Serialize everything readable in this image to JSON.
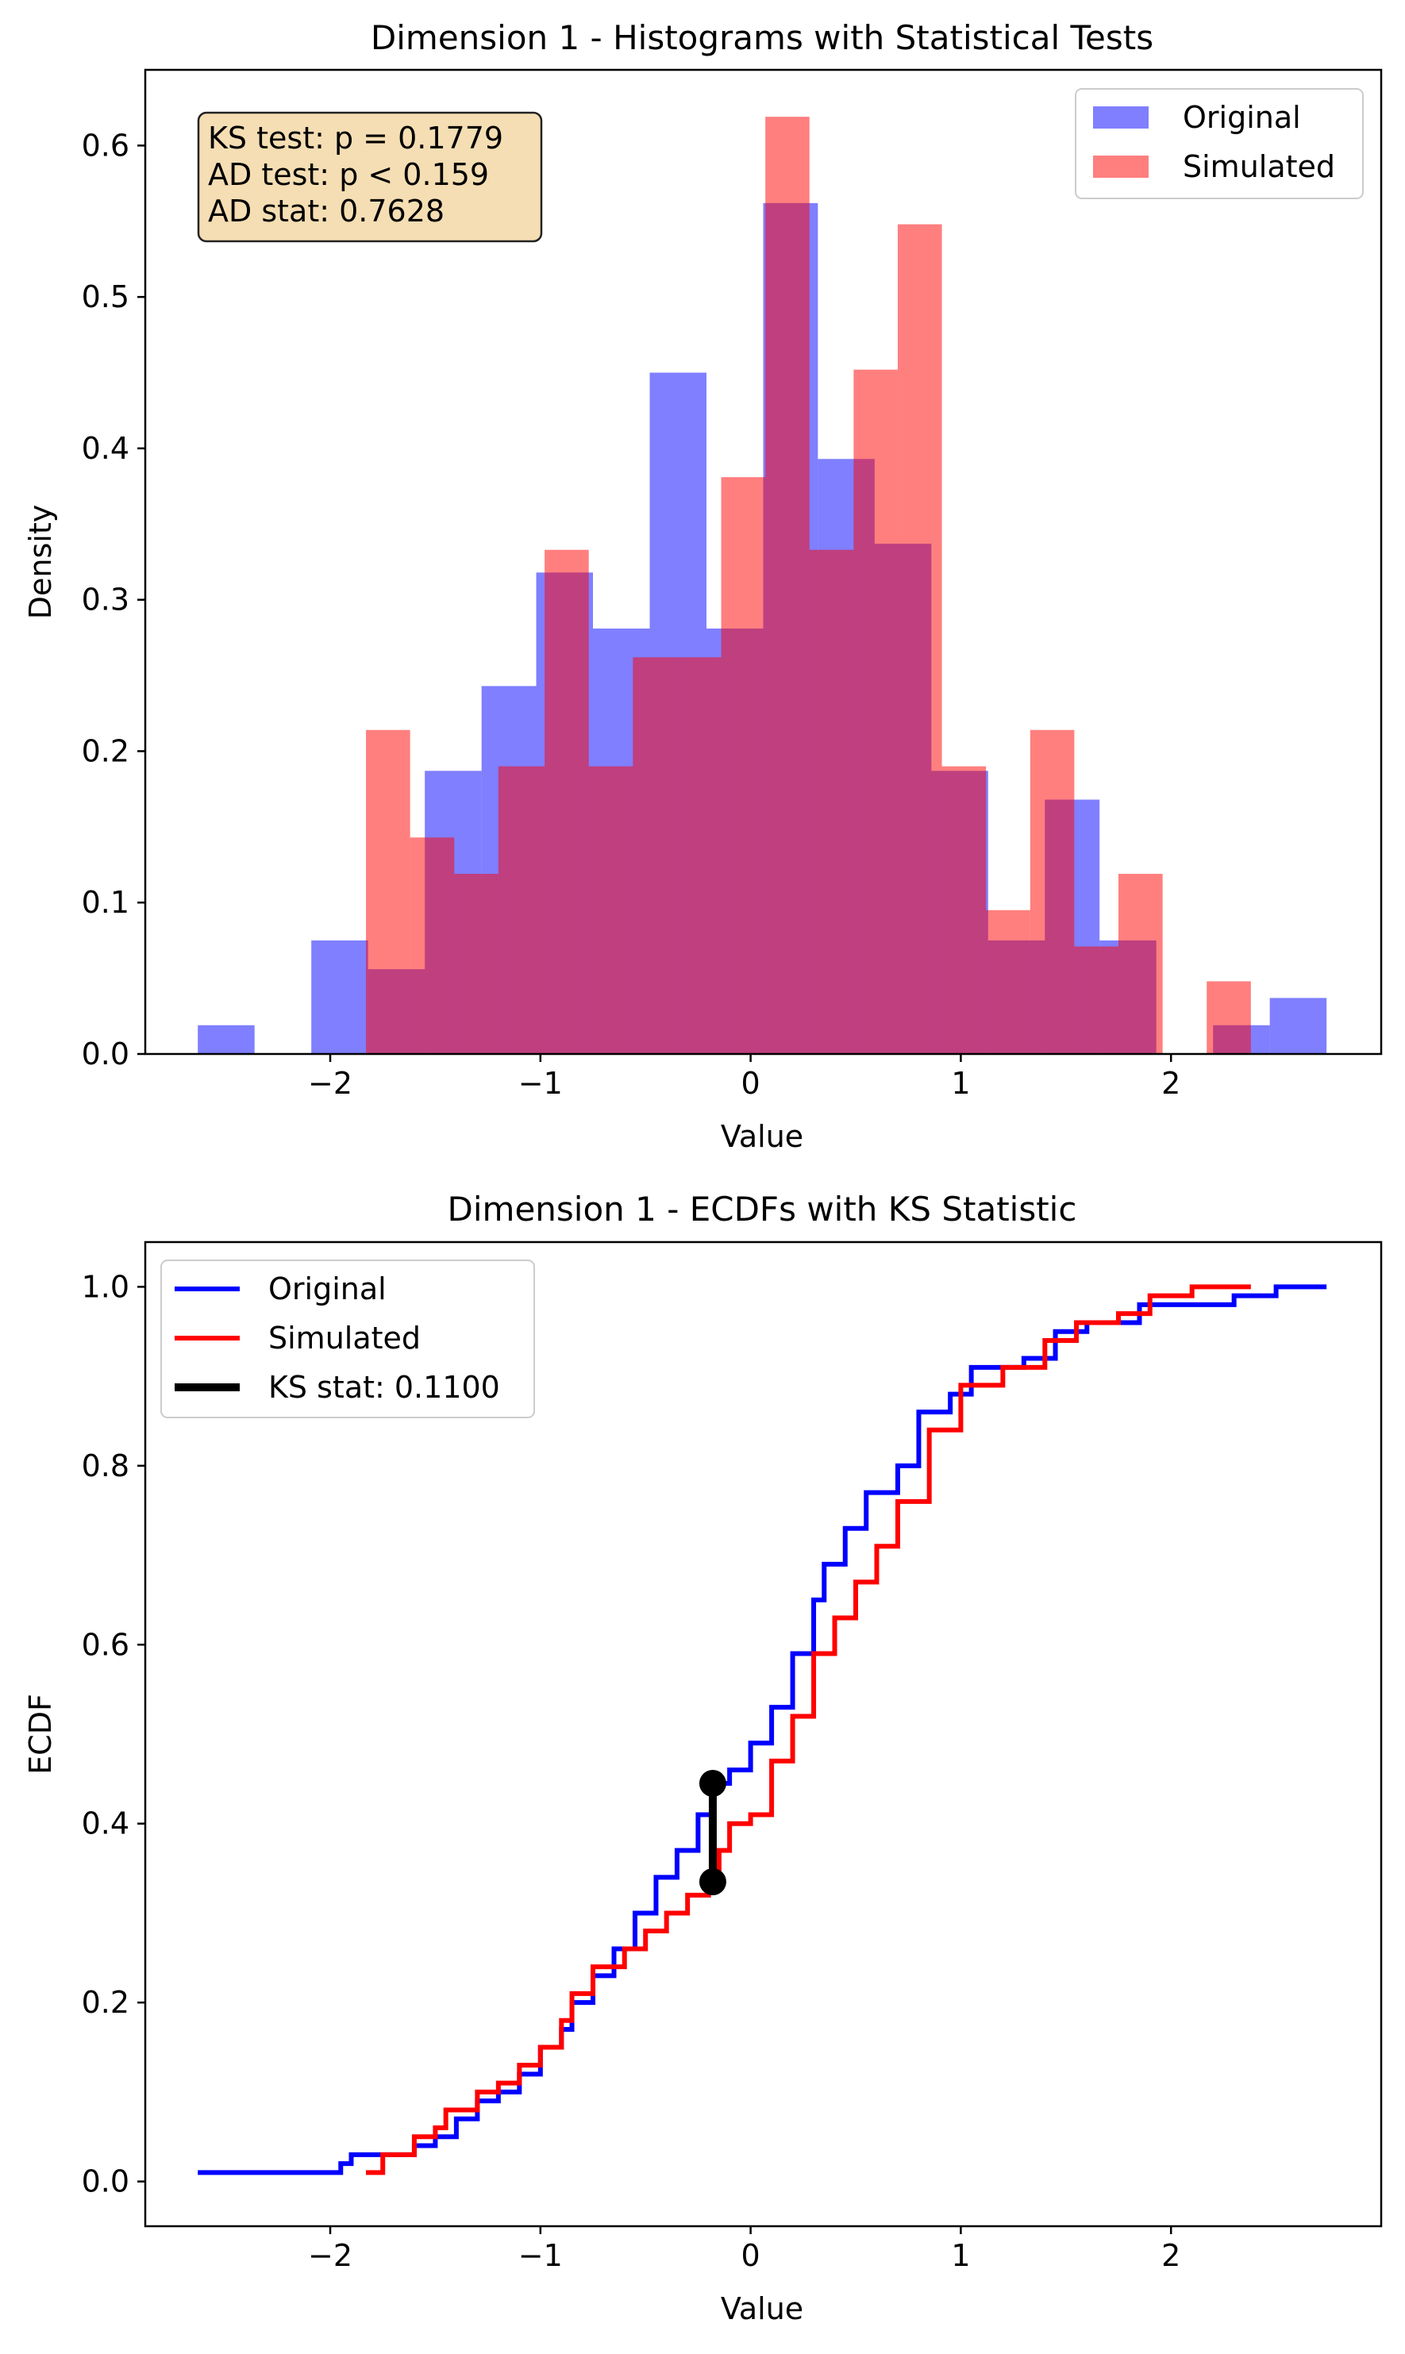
{
  "colors": {
    "original": "#0000ff",
    "simulated": "#ff0000",
    "ks_segment": "#000000",
    "annotation_fill": "#f5deb3"
  },
  "chart_data": [
    {
      "type": "bar",
      "title": "Dimension 1 - Histograms with Statistical Tests",
      "xlabel": "Value",
      "ylabel": "Density",
      "xlim": [
        -2.88,
        3.0
      ],
      "ylim": [
        0,
        0.65
      ],
      "xticks": [
        -2,
        -1,
        0,
        1,
        2
      ],
      "xtick_labels": [
        "−2",
        "−1",
        "0",
        "1",
        "2"
      ],
      "yticks": [
        0.0,
        0.1,
        0.2,
        0.3,
        0.4,
        0.5,
        0.6
      ],
      "ytick_labels": [
        "0.0",
        "0.1",
        "0.2",
        "0.3",
        "0.4",
        "0.5",
        "0.6"
      ],
      "legend_position": "top-right",
      "grid": false,
      "annotation": [
        "KS test: p = 0.1779",
        "AD test: p < 0.159",
        "AD stat: 0.7628"
      ],
      "series": [
        {
          "name": "Original",
          "color": "#0000ff",
          "opacity": 0.5,
          "bins": [
            {
              "x0": -2.63,
              "x1": -2.36,
              "density": 0.019
            },
            {
              "x0": -2.36,
              "x1": -2.09,
              "density": 0.0
            },
            {
              "x0": -2.09,
              "x1": -1.82,
              "density": 0.075
            },
            {
              "x0": -1.82,
              "x1": -1.55,
              "density": 0.056
            },
            {
              "x0": -1.55,
              "x1": -1.28,
              "density": 0.187
            },
            {
              "x0": -1.28,
              "x1": -1.02,
              "density": 0.243
            },
            {
              "x0": -1.02,
              "x1": -0.75,
              "density": 0.318
            },
            {
              "x0": -0.75,
              "x1": -0.48,
              "density": 0.281
            },
            {
              "x0": -0.48,
              "x1": -0.21,
              "density": 0.45
            },
            {
              "x0": -0.21,
              "x1": 0.06,
              "density": 0.281
            },
            {
              "x0": 0.06,
              "x1": 0.32,
              "density": 0.562
            },
            {
              "x0": 0.32,
              "x1": 0.59,
              "density": 0.393
            },
            {
              "x0": 0.59,
              "x1": 0.86,
              "density": 0.337
            },
            {
              "x0": 0.86,
              "x1": 1.13,
              "density": 0.187
            },
            {
              "x0": 1.13,
              "x1": 1.4,
              "density": 0.075
            },
            {
              "x0": 1.4,
              "x1": 1.66,
              "density": 0.168
            },
            {
              "x0": 1.66,
              "x1": 1.93,
              "density": 0.075
            },
            {
              "x0": 1.93,
              "x1": 2.2,
              "density": 0.0
            },
            {
              "x0": 2.2,
              "x1": 2.47,
              "density": 0.019
            },
            {
              "x0": 2.47,
              "x1": 2.74,
              "density": 0.037
            }
          ]
        },
        {
          "name": "Simulated",
          "color": "#ff0000",
          "opacity": 0.5,
          "bins": [
            {
              "x0": -1.83,
              "x1": -1.62,
              "density": 0.214
            },
            {
              "x0": -1.62,
              "x1": -1.41,
              "density": 0.143
            },
            {
              "x0": -1.41,
              "x1": -1.2,
              "density": 0.119
            },
            {
              "x0": -1.2,
              "x1": -0.98,
              "density": 0.19
            },
            {
              "x0": -0.98,
              "x1": -0.77,
              "density": 0.333
            },
            {
              "x0": -0.77,
              "x1": -0.56,
              "density": 0.19
            },
            {
              "x0": -0.56,
              "x1": -0.35,
              "density": 0.262
            },
            {
              "x0": -0.35,
              "x1": -0.14,
              "density": 0.262
            },
            {
              "x0": -0.14,
              "x1": 0.07,
              "density": 0.381
            },
            {
              "x0": 0.07,
              "x1": 0.28,
              "density": 0.619
            },
            {
              "x0": 0.28,
              "x1": 0.49,
              "density": 0.333
            },
            {
              "x0": 0.49,
              "x1": 0.7,
              "density": 0.452
            },
            {
              "x0": 0.7,
              "x1": 0.91,
              "density": 0.548
            },
            {
              "x0": 0.91,
              "x1": 1.12,
              "density": 0.19
            },
            {
              "x0": 1.12,
              "x1": 1.33,
              "density": 0.095
            },
            {
              "x0": 1.33,
              "x1": 1.54,
              "density": 0.214
            },
            {
              "x0": 1.54,
              "x1": 1.75,
              "density": 0.071
            },
            {
              "x0": 1.75,
              "x1": 1.96,
              "density": 0.119
            },
            {
              "x0": 1.96,
              "x1": 2.17,
              "density": 0.0
            },
            {
              "x0": 2.17,
              "x1": 2.38,
              "density": 0.048
            }
          ]
        }
      ]
    },
    {
      "type": "line",
      "title": "Dimension 1 - ECDFs with KS Statistic",
      "xlabel": "Value",
      "ylabel": "ECDF",
      "xlim": [
        -2.88,
        3.0
      ],
      "ylim": [
        -0.05,
        1.05
      ],
      "xticks": [
        -2,
        -1,
        0,
        1,
        2
      ],
      "xtick_labels": [
        "−2",
        "−1",
        "0",
        "1",
        "2"
      ],
      "yticks": [
        0.0,
        0.2,
        0.4,
        0.6,
        0.8,
        1.0
      ],
      "ytick_labels": [
        "0.0",
        "0.2",
        "0.4",
        "0.6",
        "0.8",
        "1.0"
      ],
      "legend_position": "top-left",
      "grid": false,
      "series": [
        {
          "name": "Original",
          "color": "#0000ff",
          "points": [
            [
              -2.63,
              0.01
            ],
            [
              -2.3,
              0.01
            ],
            [
              -2.0,
              0.01
            ],
            [
              -1.95,
              0.02
            ],
            [
              -1.9,
              0.03
            ],
            [
              -1.75,
              0.03
            ],
            [
              -1.6,
              0.04
            ],
            [
              -1.5,
              0.05
            ],
            [
              -1.4,
              0.07
            ],
            [
              -1.3,
              0.09
            ],
            [
              -1.2,
              0.1
            ],
            [
              -1.1,
              0.12
            ],
            [
              -1.0,
              0.15
            ],
            [
              -0.9,
              0.17
            ],
            [
              -0.85,
              0.2
            ],
            [
              -0.75,
              0.23
            ],
            [
              -0.65,
              0.26
            ],
            [
              -0.55,
              0.3
            ],
            [
              -0.45,
              0.34
            ],
            [
              -0.35,
              0.37
            ],
            [
              -0.25,
              0.41
            ],
            [
              -0.18,
              0.445
            ],
            [
              -0.1,
              0.46
            ],
            [
              0.0,
              0.49
            ],
            [
              0.1,
              0.53
            ],
            [
              0.2,
              0.59
            ],
            [
              0.3,
              0.65
            ],
            [
              0.35,
              0.69
            ],
            [
              0.45,
              0.73
            ],
            [
              0.55,
              0.77
            ],
            [
              0.7,
              0.8
            ],
            [
              0.8,
              0.86
            ],
            [
              0.95,
              0.88
            ],
            [
              1.05,
              0.91
            ],
            [
              1.3,
              0.92
            ],
            [
              1.45,
              0.95
            ],
            [
              1.6,
              0.96
            ],
            [
              1.85,
              0.98
            ],
            [
              2.3,
              0.99
            ],
            [
              2.5,
              1.0
            ],
            [
              2.74,
              1.0
            ]
          ]
        },
        {
          "name": "Simulated",
          "color": "#ff0000",
          "points": [
            [
              -1.83,
              0.01
            ],
            [
              -1.75,
              0.03
            ],
            [
              -1.6,
              0.05
            ],
            [
              -1.5,
              0.06
            ],
            [
              -1.45,
              0.08
            ],
            [
              -1.3,
              0.1
            ],
            [
              -1.2,
              0.11
            ],
            [
              -1.1,
              0.13
            ],
            [
              -1.0,
              0.15
            ],
            [
              -0.9,
              0.18
            ],
            [
              -0.85,
              0.21
            ],
            [
              -0.75,
              0.24
            ],
            [
              -0.6,
              0.26
            ],
            [
              -0.5,
              0.28
            ],
            [
              -0.4,
              0.3
            ],
            [
              -0.3,
              0.32
            ],
            [
              -0.2,
              0.33
            ],
            [
              -0.15,
              0.37
            ],
            [
              -0.1,
              0.4
            ],
            [
              0.0,
              0.41
            ],
            [
              0.1,
              0.47
            ],
            [
              0.2,
              0.52
            ],
            [
              0.3,
              0.59
            ],
            [
              0.4,
              0.63
            ],
            [
              0.5,
              0.67
            ],
            [
              0.6,
              0.71
            ],
            [
              0.7,
              0.76
            ],
            [
              0.85,
              0.84
            ],
            [
              1.0,
              0.89
            ],
            [
              1.2,
              0.91
            ],
            [
              1.4,
              0.94
            ],
            [
              1.55,
              0.96
            ],
            [
              1.75,
              0.97
            ],
            [
              1.9,
              0.99
            ],
            [
              2.1,
              1.0
            ],
            [
              2.38,
              1.0
            ]
          ]
        }
      ],
      "ks_segment": {
        "name": "KS stat: 0.1100",
        "x": -0.18,
        "y_low": 0.335,
        "y_high": 0.445,
        "color": "#000000"
      }
    }
  ]
}
